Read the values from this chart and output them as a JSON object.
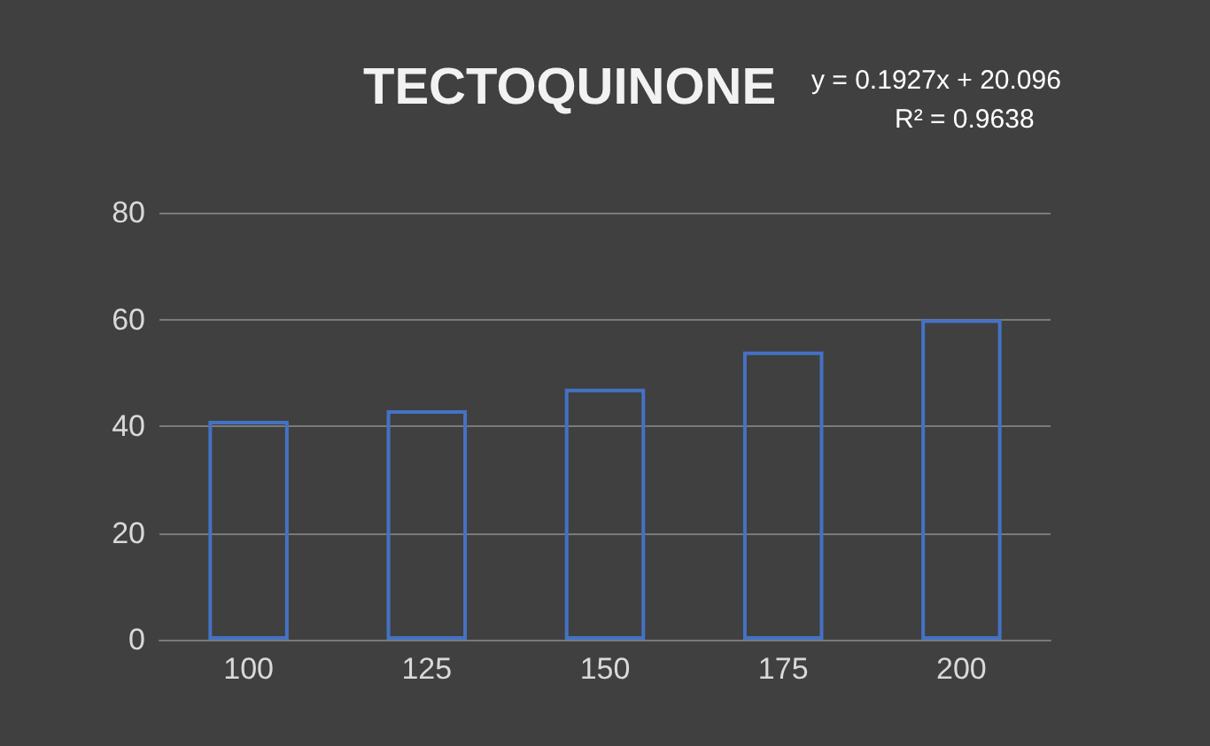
{
  "chart_data": {
    "type": "bar",
    "title": "TECTOQUINONE",
    "annotations": [
      "y = 0.1927x + 20.096",
      "R² = 0.9638"
    ],
    "categories": [
      "100",
      "125",
      "150",
      "175",
      "200"
    ],
    "values": [
      41,
      43,
      47,
      54,
      60
    ],
    "color": "#4472c4",
    "ylim": [
      0,
      80
    ],
    "yticks": [
      0,
      20,
      40,
      60,
      80
    ],
    "grid": "y"
  }
}
